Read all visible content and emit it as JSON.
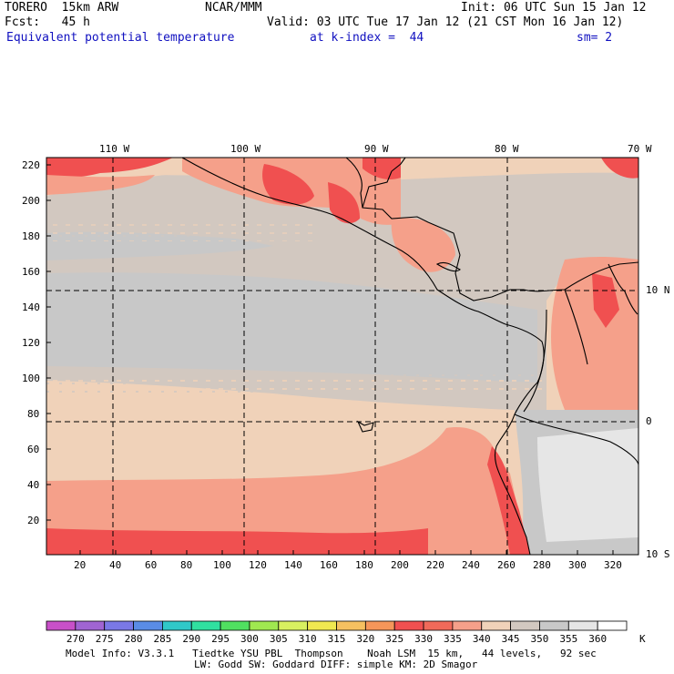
{
  "header": {
    "model": "TORERO  15km ARW",
    "org": "NCAR/MMM",
    "init": "Init: 06 UTC Sun 15 Jan 12",
    "fcst": "Fcst:   45 h",
    "valid": "Valid: 03 UTC Tue 17 Jan 12 (21 CST Mon 16 Jan 12)",
    "field": "Equivalent potential temperature",
    "level": "at k-index =  44",
    "smooth": "sm= 2"
  },
  "axes": {
    "top_lon": [
      "110 W",
      "100 W",
      "90 W",
      "80 W",
      "70 W"
    ],
    "right_lat": [
      "10 N",
      "0",
      "10 S"
    ],
    "left_y": [
      "220",
      "200",
      "180",
      "160",
      "140",
      "120",
      "100",
      "80",
      "60",
      "40",
      "20"
    ],
    "bottom_x": [
      "20",
      "40",
      "60",
      "80",
      "100",
      "120",
      "140",
      "160",
      "180",
      "200",
      "220",
      "240",
      "260",
      "280",
      "300",
      "320"
    ]
  },
  "colorbar": {
    "levels": [
      "270",
      "275",
      "280",
      "285",
      "290",
      "295",
      "300",
      "305",
      "310",
      "315",
      "320",
      "325",
      "330",
      "335",
      "340",
      "345",
      "350",
      "355",
      "360"
    ],
    "unit": "K",
    "colors": [
      "#c850c8",
      "#a064d2",
      "#7a78e6",
      "#5a8ce6",
      "#30c8c8",
      "#30e0a0",
      "#50e060",
      "#a0e850",
      "#d8f060",
      "#f0e850",
      "#f5c060",
      "#f5965a",
      "#f05050",
      "#f06a5a",
      "#f5a08a",
      "#f0d2b9",
      "#d2c8c0",
      "#c8c8c8",
      "#e6e6e6",
      "#ffffff"
    ]
  },
  "footer": {
    "line1": "Model Info: V3.3.1   Tiedtke YSU PBL  Thompson    Noah LSM  15 km,   44 levels,   92 sec",
    "line2": "LW: Godd SW: Goddard DIFF: simple KM: 2D Smagor"
  },
  "map_colors": {
    "red": "#f05050",
    "salmon": "#f5a08a",
    "peach": "#f0d2b9",
    "taupe": "#d2c8c0",
    "gray": "#c8c8c8",
    "light": "#e6e6e6"
  }
}
